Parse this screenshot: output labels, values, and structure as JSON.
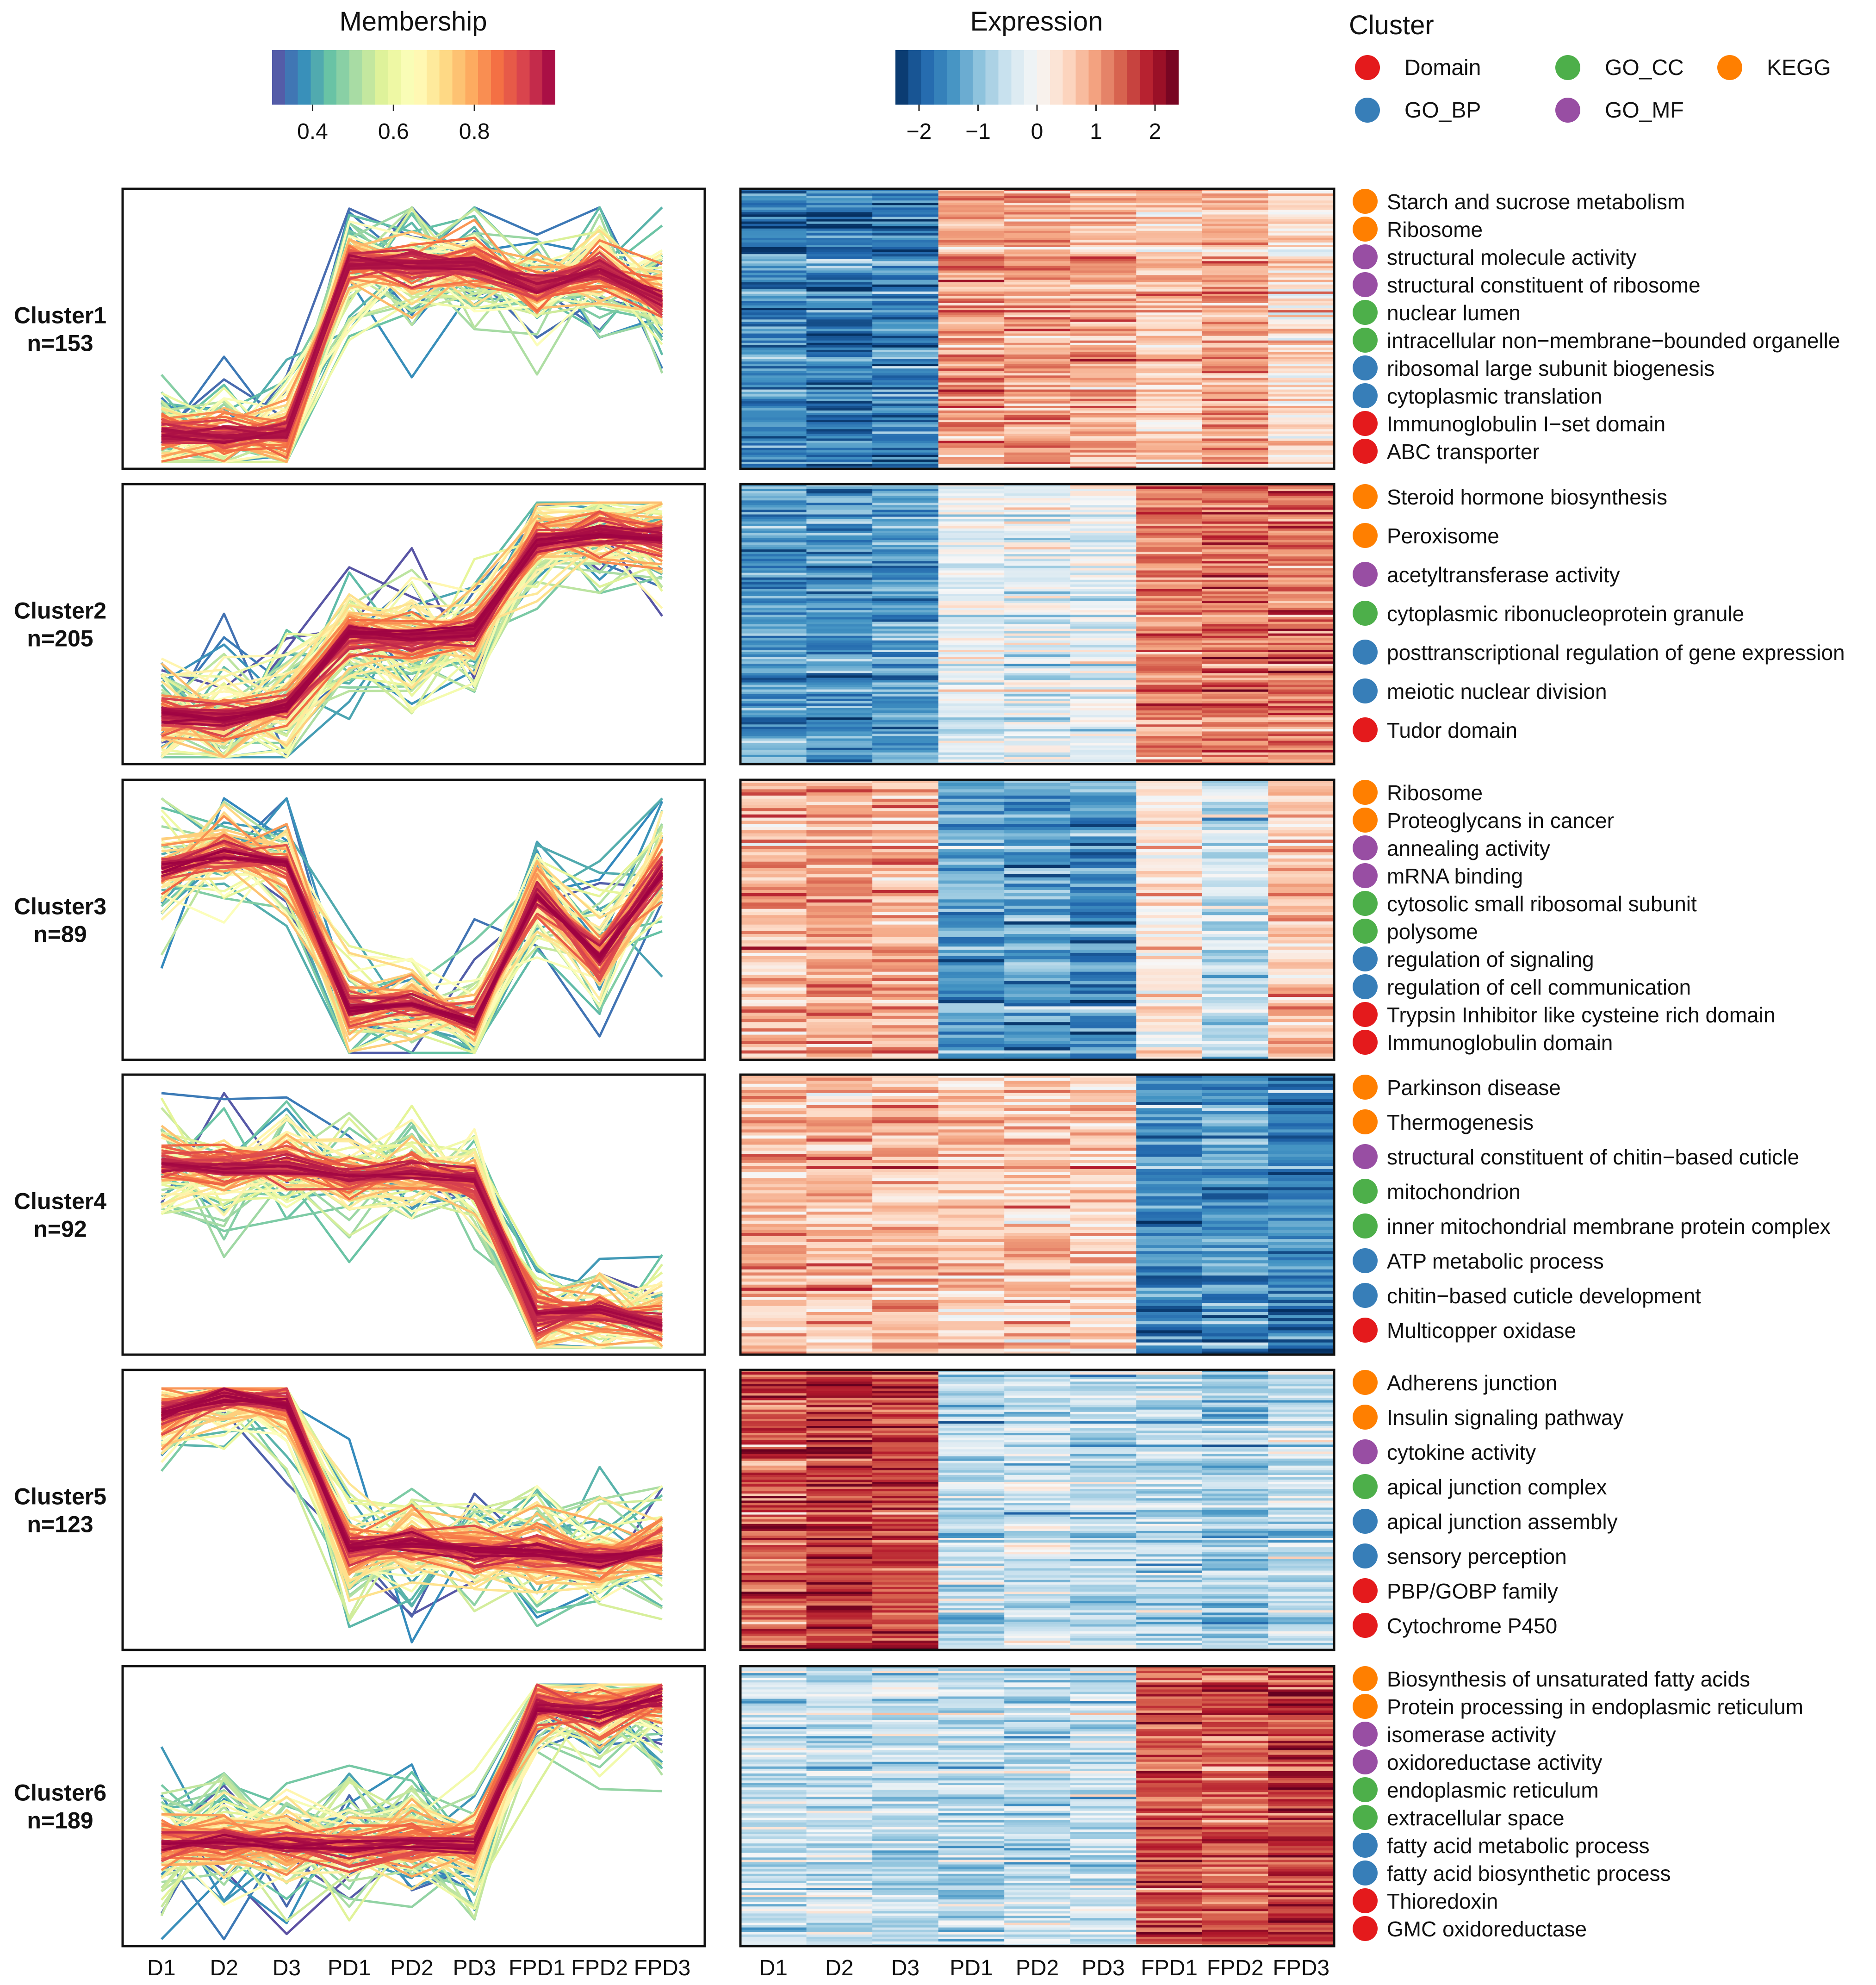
{
  "chart_data": {
    "type": "heatmap",
    "title": "",
    "xlabel": "",
    "ylabel": "",
    "categories": [
      "D1",
      "D2",
      "D3",
      "PD1",
      "PD2",
      "PD3",
      "FPD1",
      "FPD2",
      "FPD3"
    ],
    "legends": {
      "membership": {
        "title": "Membership",
        "ticks": [
          "0.4",
          "0.6",
          "0.8"
        ],
        "range": [
          0.3,
          1.0
        ],
        "colors": [
          "#5e4fa2",
          "#3288bd",
          "#66c2a5",
          "#abdda4",
          "#e6f598",
          "#ffffbf",
          "#fee08b",
          "#fdae61",
          "#f46d43",
          "#d53e4f",
          "#9e0142"
        ]
      },
      "expression": {
        "title": "Expression",
        "ticks": [
          "−2",
          "−1",
          "0",
          "1",
          "2"
        ],
        "range": [
          -2.4,
          2.4
        ],
        "colors": [
          "#053061",
          "#2166ac",
          "#4393c3",
          "#92c5de",
          "#d1e5f0",
          "#f7f7f7",
          "#fddbc7",
          "#f4a582",
          "#d6604d",
          "#b2182b",
          "#67001f"
        ]
      },
      "cluster": {
        "title": "Cluster",
        "items": [
          {
            "label": "Domain",
            "key": "Domain"
          },
          {
            "label": "GO_CC",
            "key": "GO_CC"
          },
          {
            "label": "KEGG",
            "key": "KEGG"
          },
          {
            "label": "GO_BP",
            "key": "GO_BP"
          },
          {
            "label": "GO_MF",
            "key": "GO_MF"
          }
        ]
      }
    },
    "category_colors": {
      "Domain": "#e41a1c",
      "GO_BP": "#377eb8",
      "GO_CC": "#4daf4a",
      "GO_MF": "#984ea3",
      "KEGG": "#ff7f00"
    },
    "clusters": [
      {
        "name": "Cluster1",
        "n": "n=153",
        "gene_count": 153,
        "profile": [
          -1.5,
          -1.55,
          -1.5,
          0.95,
          0.9,
          0.92,
          0.6,
          0.85,
          0.4
        ],
        "terms": [
          {
            "label": "Starch and sucrose metabolism",
            "cat": "KEGG"
          },
          {
            "label": "Ribosome",
            "cat": "KEGG"
          },
          {
            "label": "structural molecule activity",
            "cat": "GO_MF"
          },
          {
            "label": "structural constituent of ribosome",
            "cat": "GO_MF"
          },
          {
            "label": "nuclear lumen",
            "cat": "GO_CC"
          },
          {
            "label": "intracellular non−membrane−bounded organelle",
            "cat": "GO_CC"
          },
          {
            "label": "ribosomal large subunit biogenesis",
            "cat": "GO_BP"
          },
          {
            "label": "cytoplasmic translation",
            "cat": "GO_BP"
          },
          {
            "label": "Immunoglobulin I−set domain",
            "cat": "Domain"
          },
          {
            "label": "ABC transporter",
            "cat": "Domain"
          }
        ]
      },
      {
        "name": "Cluster2",
        "n": "n=205",
        "gene_count": 205,
        "profile": [
          -1.3,
          -1.35,
          -1.2,
          -0.15,
          -0.2,
          -0.1,
          1.2,
          1.3,
          1.25
        ],
        "terms": [
          {
            "label": "Steroid hormone biosynthesis",
            "cat": "KEGG"
          },
          {
            "label": "Peroxisome",
            "cat": "KEGG"
          },
          {
            "label": "acetyltransferase activity",
            "cat": "GO_MF"
          },
          {
            "label": "cytoplasmic ribonucleoprotein granule",
            "cat": "GO_CC"
          },
          {
            "label": "posttranscriptional regulation of gene expression",
            "cat": "GO_BP"
          },
          {
            "label": "meiotic nuclear division",
            "cat": "GO_BP"
          },
          {
            "label": "Tudor domain",
            "cat": "Domain"
          }
        ]
      },
      {
        "name": "Cluster3",
        "n": "n=89",
        "gene_count": 89,
        "profile": [
          0.75,
          0.95,
          0.8,
          -1.25,
          -1.2,
          -1.45,
          0.35,
          -0.5,
          0.7
        ],
        "terms": [
          {
            "label": "Ribosome",
            "cat": "KEGG"
          },
          {
            "label": "Proteoglycans in cancer",
            "cat": "KEGG"
          },
          {
            "label": "annealing activity",
            "cat": "GO_MF"
          },
          {
            "label": "mRNA binding",
            "cat": "GO_MF"
          },
          {
            "label": "cytosolic small ribosomal subunit",
            "cat": "GO_CC"
          },
          {
            "label": "polysome",
            "cat": "GO_CC"
          },
          {
            "label": "regulation of signaling",
            "cat": "GO_BP"
          },
          {
            "label": "regulation of cell communication",
            "cat": "GO_BP"
          },
          {
            "label": "Trypsin Inhibitor like cysteine rich domain",
            "cat": "Domain"
          },
          {
            "label": "Immunoglobulin domain",
            "cat": "Domain"
          }
        ]
      },
      {
        "name": "Cluster4",
        "n": "n=92",
        "gene_count": 92,
        "profile": [
          0.75,
          0.65,
          0.7,
          0.55,
          0.6,
          0.5,
          -1.45,
          -1.4,
          -1.55
        ],
        "terms": [
          {
            "label": "Parkinson disease",
            "cat": "KEGG"
          },
          {
            "label": "Thermogenesis",
            "cat": "KEGG"
          },
          {
            "label": "structural constituent of chitin−based cuticle",
            "cat": "GO_MF"
          },
          {
            "label": "mitochondrion",
            "cat": "GO_CC"
          },
          {
            "label": "inner mitochondrial membrane protein complex",
            "cat": "GO_CC"
          },
          {
            "label": "ATP metabolic process",
            "cat": "GO_BP"
          },
          {
            "label": "chitin−based cuticle development",
            "cat": "GO_BP"
          },
          {
            "label": "Multicopper oxidase",
            "cat": "Domain"
          }
        ]
      },
      {
        "name": "Cluster5",
        "n": "n=123",
        "gene_count": 123,
        "profile": [
          1.4,
          1.65,
          1.55,
          -0.55,
          -0.45,
          -0.6,
          -0.6,
          -0.75,
          -0.55
        ],
        "terms": [
          {
            "label": "Adherens junction",
            "cat": "KEGG"
          },
          {
            "label": "Insulin signaling pathway",
            "cat": "KEGG"
          },
          {
            "label": "cytokine activity",
            "cat": "GO_MF"
          },
          {
            "label": "apical junction complex",
            "cat": "GO_CC"
          },
          {
            "label": "apical junction assembly",
            "cat": "GO_BP"
          },
          {
            "label": "sensory perception",
            "cat": "GO_BP"
          },
          {
            "label": "PBP/GOBP family",
            "cat": "Domain"
          },
          {
            "label": "Cytochrome P450",
            "cat": "Domain"
          }
        ]
      },
      {
        "name": "Cluster6",
        "n": "n=189",
        "gene_count": 189,
        "profile": [
          -0.55,
          -0.5,
          -0.55,
          -0.6,
          -0.55,
          -0.55,
          1.45,
          1.35,
          1.6
        ],
        "terms": [
          {
            "label": "Biosynthesis of unsaturated fatty acids",
            "cat": "KEGG"
          },
          {
            "label": "Protein processing in endoplasmic reticulum",
            "cat": "KEGG"
          },
          {
            "label": "isomerase activity",
            "cat": "GO_MF"
          },
          {
            "label": "oxidoreductase activity",
            "cat": "GO_MF"
          },
          {
            "label": "endoplasmic reticulum",
            "cat": "GO_CC"
          },
          {
            "label": "extracellular space",
            "cat": "GO_CC"
          },
          {
            "label": "fatty acid metabolic process",
            "cat": "GO_BP"
          },
          {
            "label": "fatty acid biosynthetic process",
            "cat": "GO_BP"
          },
          {
            "label": "Thioredoxin",
            "cat": "Domain"
          },
          {
            "label": "GMC oxidoreductase",
            "cat": "Domain"
          }
        ]
      }
    ]
  }
}
